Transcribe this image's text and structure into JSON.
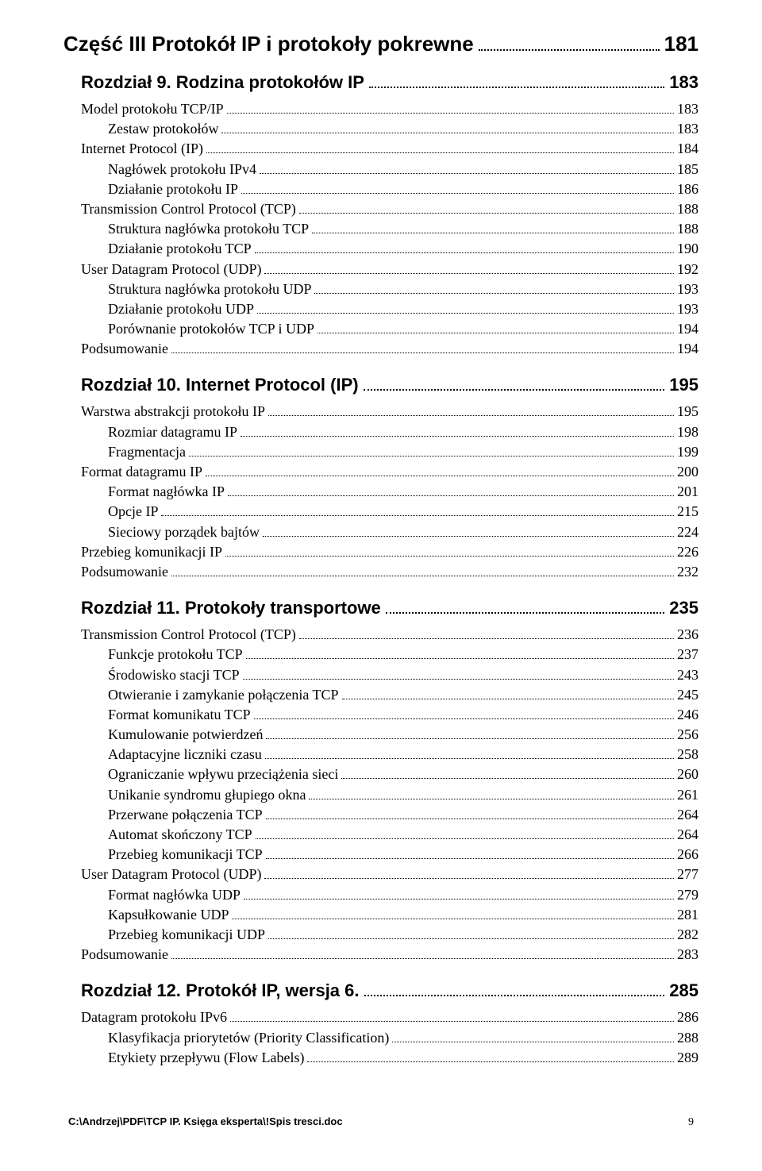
{
  "part": {
    "title": "Część III Protokół IP i protokoły pokrewne",
    "page": "181"
  },
  "chapters": [
    {
      "title": "Rozdział 9. Rodzina protokołów IP",
      "page": "183",
      "entries": [
        {
          "level": 1,
          "label": "Model protokołu TCP/IP",
          "page": "183"
        },
        {
          "level": 2,
          "label": "Zestaw protokołów",
          "page": "183"
        },
        {
          "level": 1,
          "label": "Internet Protocol (IP)",
          "page": "184"
        },
        {
          "level": 2,
          "label": "Nagłówek protokołu IPv4",
          "page": "185"
        },
        {
          "level": 2,
          "label": "Działanie protokołu IP",
          "page": "186"
        },
        {
          "level": 1,
          "label": "Transmission Control Protocol (TCP)",
          "page": "188"
        },
        {
          "level": 2,
          "label": "Struktura nagłówka protokołu TCP",
          "page": "188"
        },
        {
          "level": 2,
          "label": "Działanie protokołu TCP",
          "page": "190"
        },
        {
          "level": 1,
          "label": "User Datagram Protocol (UDP)",
          "page": "192"
        },
        {
          "level": 2,
          "label": "Struktura nagłówka protokołu UDP",
          "page": "193"
        },
        {
          "level": 2,
          "label": "Działanie protokołu UDP",
          "page": "193"
        },
        {
          "level": 2,
          "label": "Porównanie protokołów TCP i UDP",
          "page": "194"
        },
        {
          "level": 1,
          "label": "Podsumowanie",
          "page": "194"
        }
      ]
    },
    {
      "title": "Rozdział 10. Internet Protocol (IP)",
      "page": "195",
      "entries": [
        {
          "level": 1,
          "label": "Warstwa abstrakcji protokołu IP",
          "page": "195"
        },
        {
          "level": 2,
          "label": "Rozmiar datagramu IP",
          "page": "198"
        },
        {
          "level": 2,
          "label": "Fragmentacja",
          "page": "199"
        },
        {
          "level": 1,
          "label": "Format datagramu IP",
          "page": "200"
        },
        {
          "level": 2,
          "label": "Format nagłówka IP",
          "page": "201"
        },
        {
          "level": 2,
          "label": "Opcje IP",
          "page": "215"
        },
        {
          "level": 2,
          "label": "Sieciowy porządek bajtów",
          "page": "224"
        },
        {
          "level": 1,
          "label": "Przebieg komunikacji IP",
          "page": "226"
        },
        {
          "level": 1,
          "label": "Podsumowanie",
          "page": "232"
        }
      ]
    },
    {
      "title": "Rozdział 11. Protokoły transportowe",
      "page": "235",
      "entries": [
        {
          "level": 1,
          "label": "Transmission Control Protocol (TCP)",
          "page": "236"
        },
        {
          "level": 2,
          "label": "Funkcje protokołu TCP",
          "page": "237"
        },
        {
          "level": 2,
          "label": "Środowisko stacji TCP",
          "page": "243"
        },
        {
          "level": 2,
          "label": "Otwieranie i zamykanie połączenia TCP",
          "page": "245"
        },
        {
          "level": 2,
          "label": "Format komunikatu TCP",
          "page": "246"
        },
        {
          "level": 2,
          "label": "Kumulowanie potwierdzeń",
          "page": "256"
        },
        {
          "level": 2,
          "label": "Adaptacyjne liczniki czasu",
          "page": "258"
        },
        {
          "level": 2,
          "label": "Ograniczanie wpływu przeciążenia sieci",
          "page": "260"
        },
        {
          "level": 2,
          "label": "Unikanie syndromu głupiego okna",
          "page": "261"
        },
        {
          "level": 2,
          "label": "Przerwane połączenia TCP",
          "page": "264"
        },
        {
          "level": 2,
          "label": "Automat skończony TCP",
          "page": "264"
        },
        {
          "level": 2,
          "label": "Przebieg komunikacji TCP",
          "page": "266"
        },
        {
          "level": 1,
          "label": "User Datagram Protocol (UDP)",
          "page": "277"
        },
        {
          "level": 2,
          "label": "Format nagłówka UDP",
          "page": "279"
        },
        {
          "level": 2,
          "label": "Kapsułkowanie UDP",
          "page": "281"
        },
        {
          "level": 2,
          "label": "Przebieg komunikacji UDP",
          "page": "282"
        },
        {
          "level": 1,
          "label": "Podsumowanie",
          "page": "283"
        }
      ]
    },
    {
      "title": "Rozdział 12. Protokół IP, wersja 6.",
      "page": "285",
      "entries": [
        {
          "level": 1,
          "label": "Datagram protokołu IPv6",
          "page": "286"
        },
        {
          "level": 2,
          "label": "Klasyfikacja priorytetów (Priority Classification)",
          "page": "288"
        },
        {
          "level": 2,
          "label": "Etykiety przepływu (Flow Labels)",
          "page": "289"
        }
      ]
    }
  ],
  "footer": {
    "path": "C:\\Andrzej\\PDF\\TCP IP. Księga eksperta\\!Spis tresci.doc",
    "page": "9"
  }
}
